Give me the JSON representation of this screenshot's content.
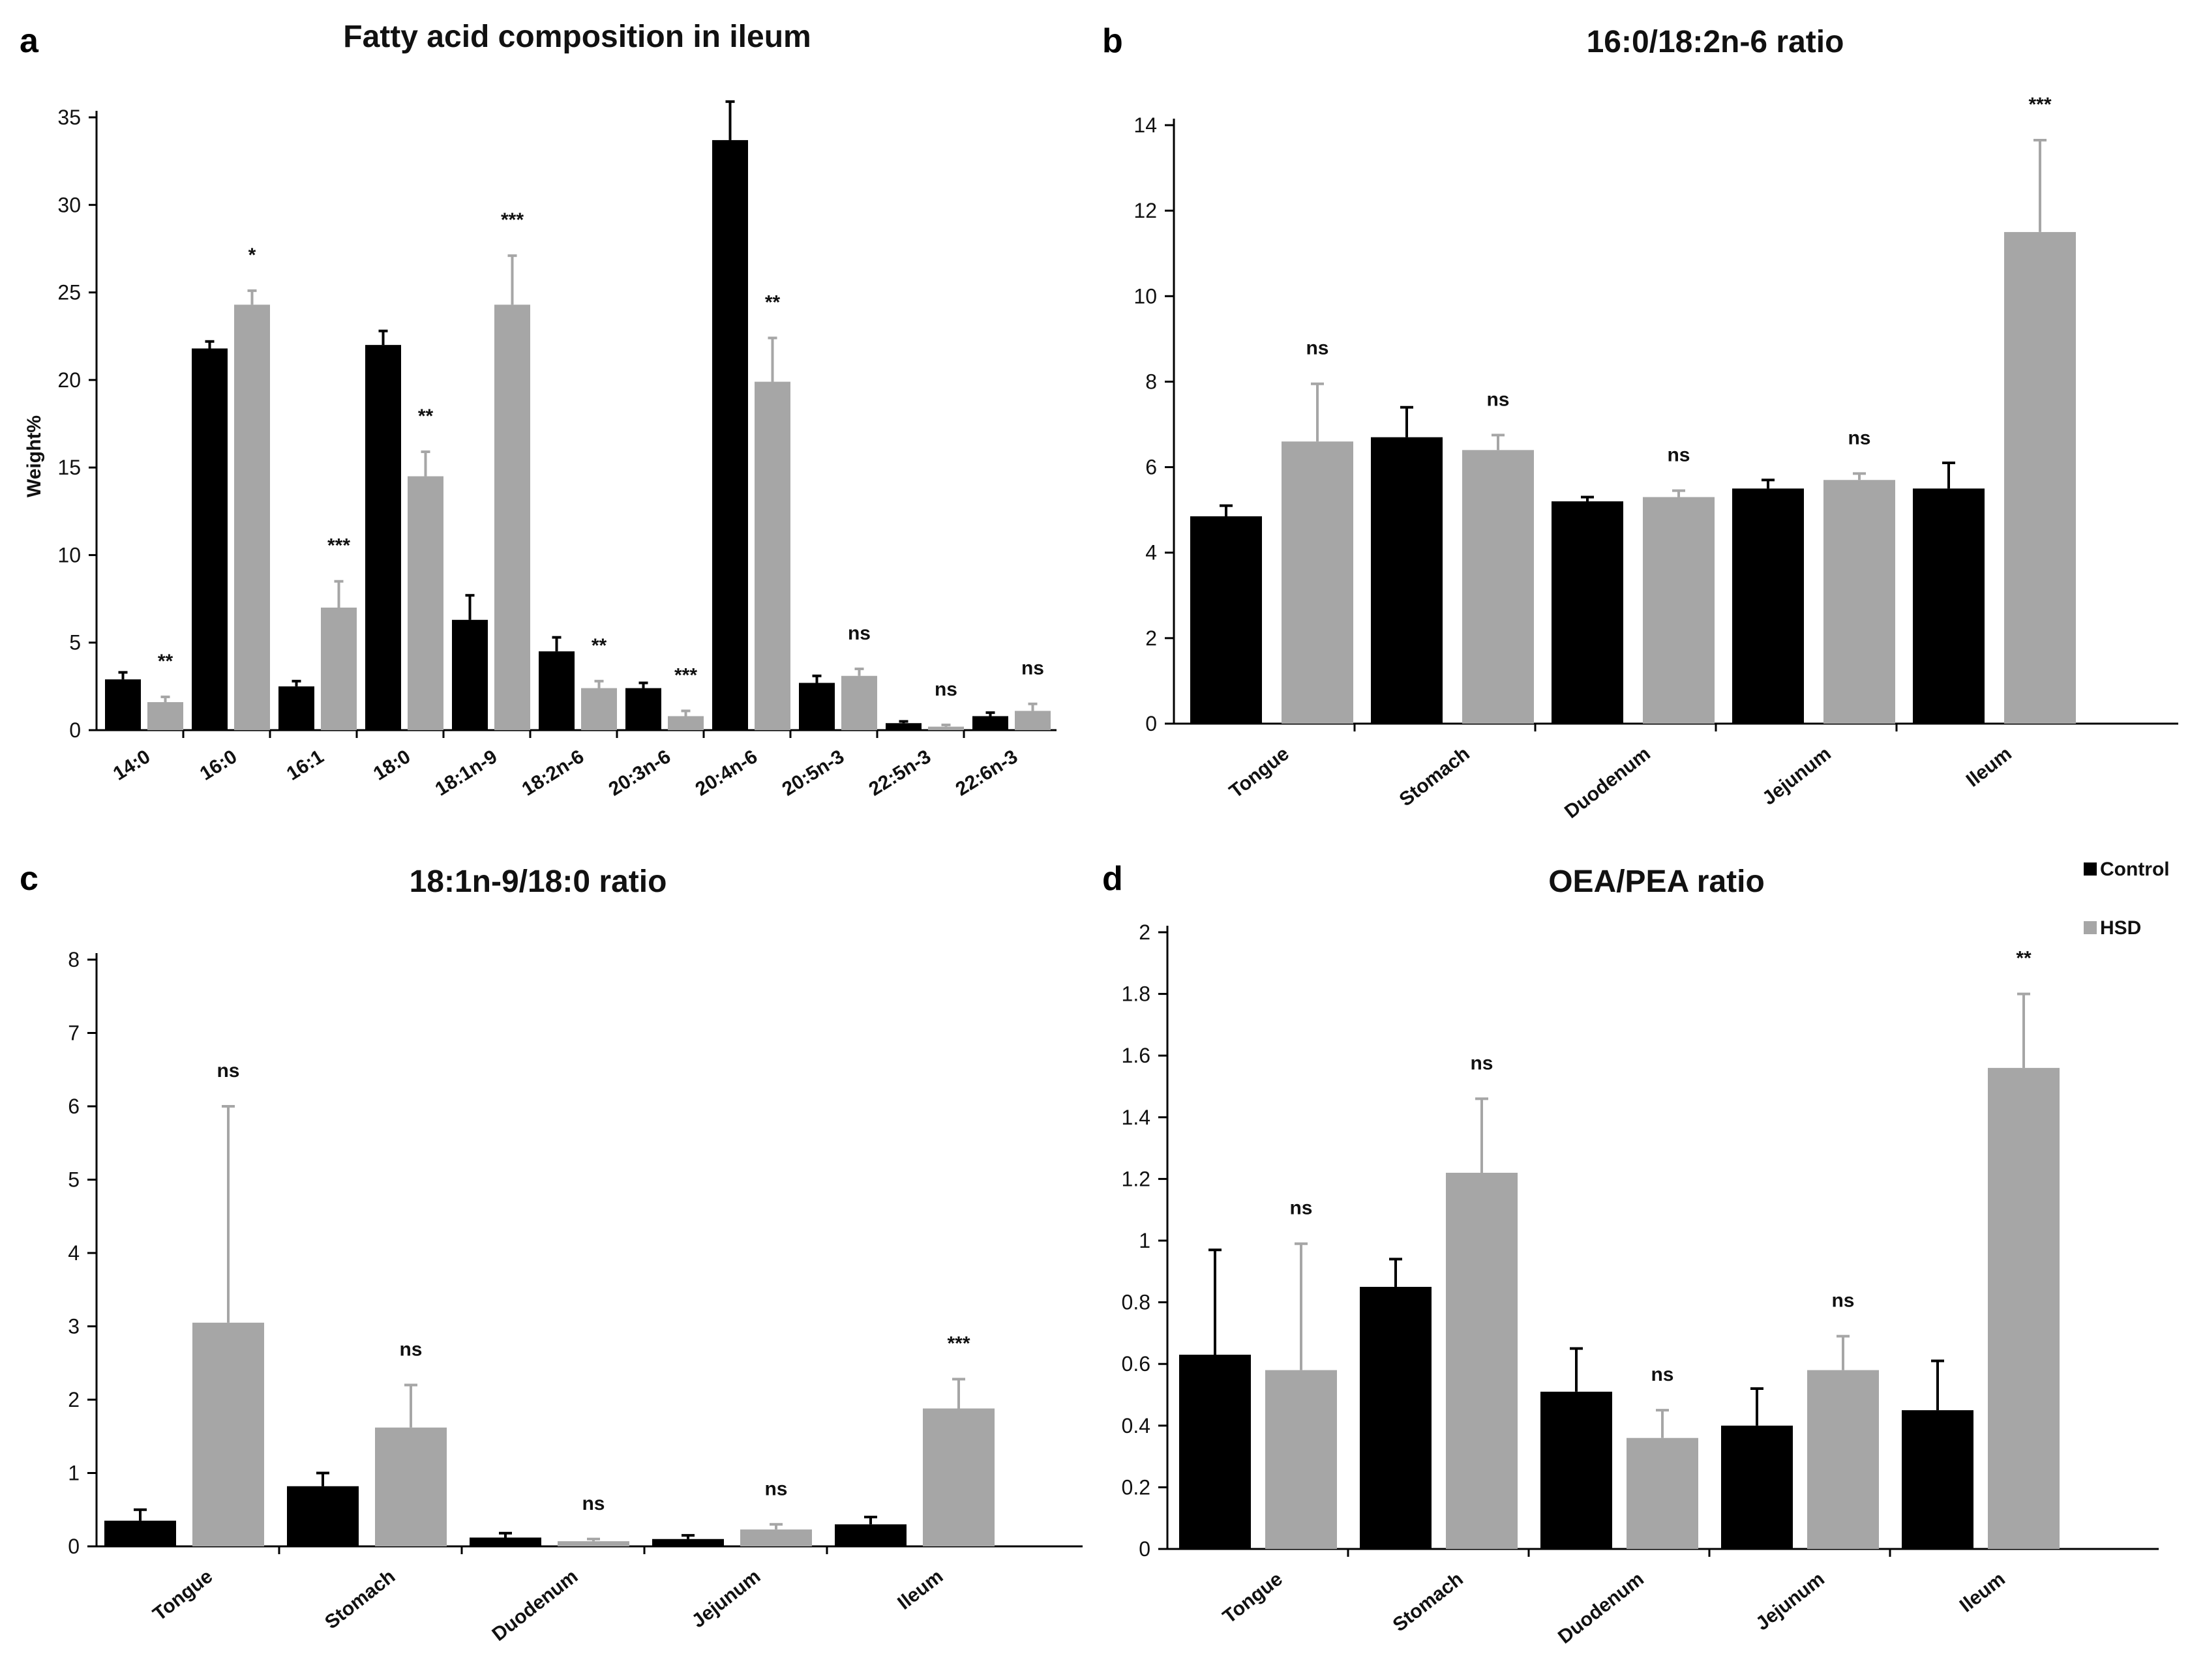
{
  "colors": {
    "control": "#000000",
    "hsd": "#a6a6a6",
    "axis": "#000000"
  },
  "legend": {
    "items": [
      {
        "label": "Control",
        "color": "#000000"
      },
      {
        "label": "HSD",
        "color": "#a6a6a6"
      }
    ]
  },
  "chart_data": [
    {
      "id": "a",
      "letter": "a",
      "type": "bar",
      "title": "Fatty acid composition in ileum",
      "ylabel": "Weight%",
      "xlabel": "",
      "ylim": [
        0,
        35
      ],
      "yticks": [
        "0",
        "5",
        "10",
        "15",
        "20",
        "25",
        "30",
        "35"
      ],
      "categories": [
        "14:0",
        "16:0",
        "16:1",
        "18:0",
        "18:1n-9",
        "18:2n-6",
        "20:3n-6",
        "20:4n-6",
        "20:5n-3",
        "22:5n-3",
        "22:6n-3"
      ],
      "series": [
        {
          "name": "Control",
          "values": [
            2.9,
            21.8,
            2.5,
            22.0,
            6.3,
            4.5,
            2.4,
            33.7,
            2.7,
            0.4,
            0.8
          ],
          "errors": [
            0.4,
            0.4,
            0.3,
            0.8,
            1.4,
            0.8,
            0.3,
            2.2,
            0.4,
            0.1,
            0.2
          ]
        },
        {
          "name": "HSD",
          "values": [
            1.6,
            24.3,
            7.0,
            14.5,
            24.3,
            2.4,
            0.8,
            19.9,
            3.1,
            0.2,
            1.1
          ],
          "errors": [
            0.3,
            0.8,
            1.5,
            1.4,
            2.8,
            0.4,
            0.3,
            2.5,
            0.4,
            0.1,
            0.4
          ]
        }
      ],
      "significance": [
        "**",
        "*",
        "***",
        "**",
        "***",
        "**",
        "***",
        "**",
        "ns",
        "ns",
        "ns"
      ]
    },
    {
      "id": "b",
      "letter": "b",
      "type": "bar",
      "title": "16:0/18:2n-6 ratio",
      "ylabel": "",
      "xlabel": "",
      "ylim": [
        0,
        14
      ],
      "yticks": [
        "0",
        "2",
        "4",
        "6",
        "8",
        "10",
        "12",
        "14"
      ],
      "categories": [
        "Tongue",
        "Stomach",
        "Duodenum",
        "Jejunum",
        "Ileum"
      ],
      "series": [
        {
          "name": "Control",
          "values": [
            4.85,
            6.7,
            5.2,
            5.5,
            5.5
          ],
          "errors": [
            0.25,
            0.7,
            0.1,
            0.2,
            0.6
          ]
        },
        {
          "name": "HSD",
          "values": [
            6.6,
            6.4,
            5.3,
            5.7,
            11.5
          ],
          "errors": [
            1.35,
            0.35,
            0.15,
            0.15,
            2.15
          ]
        }
      ],
      "significance": [
        "ns",
        "ns",
        "ns",
        "ns",
        "***"
      ]
    },
    {
      "id": "c",
      "letter": "c",
      "type": "bar",
      "title": "18:1n-9/18:0 ratio",
      "ylabel": "",
      "xlabel": "",
      "ylim": [
        0,
        8
      ],
      "yticks": [
        "0",
        "1",
        "2",
        "3",
        "4",
        "5",
        "6",
        "7",
        "8"
      ],
      "categories": [
        "Tongue",
        "Stomach",
        "Duodenum",
        "Jejunum",
        "Ileum"
      ],
      "series": [
        {
          "name": "Control",
          "values": [
            0.35,
            0.82,
            0.12,
            0.1,
            0.3
          ],
          "errors": [
            0.15,
            0.18,
            0.06,
            0.05,
            0.1
          ]
        },
        {
          "name": "HSD",
          "values": [
            3.05,
            1.62,
            0.07,
            0.23,
            1.88
          ],
          "errors": [
            2.95,
            0.58,
            0.03,
            0.07,
            0.4
          ]
        }
      ],
      "significance": [
        "ns",
        "ns",
        "ns",
        "ns",
        "***"
      ]
    },
    {
      "id": "d",
      "letter": "d",
      "type": "bar",
      "title": "OEA/PEA ratio",
      "ylabel": "",
      "xlabel": "",
      "ylim": [
        0,
        2
      ],
      "yticks": [
        "0",
        "0.2",
        "0.4",
        "0.6",
        "0.8",
        "1",
        "1.2",
        "1.4",
        "1.6",
        "1.8",
        "2"
      ],
      "categories": [
        "Tongue",
        "Stomach",
        "Duodenum",
        "Jejunum",
        "Ileum"
      ],
      "series": [
        {
          "name": "Control",
          "values": [
            0.63,
            0.85,
            0.51,
            0.4,
            0.45
          ],
          "errors": [
            0.34,
            0.09,
            0.14,
            0.12,
            0.16
          ]
        },
        {
          "name": "HSD",
          "values": [
            0.58,
            1.22,
            0.36,
            0.58,
            1.56
          ],
          "errors": [
            0.41,
            0.24,
            0.09,
            0.11,
            0.24
          ]
        }
      ],
      "significance": [
        "ns",
        "ns",
        "ns",
        "ns",
        "**"
      ]
    }
  ]
}
